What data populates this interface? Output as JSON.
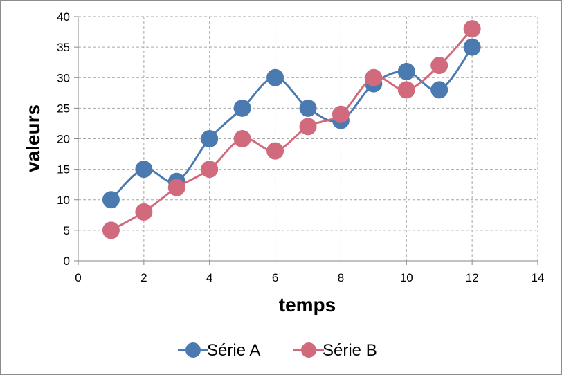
{
  "chart_data": {
    "type": "scatter",
    "title": "",
    "xlabel": "temps",
    "ylabel": "valeurs",
    "xlim": [
      0,
      14
    ],
    "ylim": [
      0,
      40
    ],
    "x_ticks": [
      0,
      2,
      4,
      6,
      8,
      10,
      12,
      14
    ],
    "y_ticks": [
      0,
      5,
      10,
      15,
      20,
      25,
      30,
      35,
      40
    ],
    "grid": true,
    "legend_position": "bottom",
    "series": [
      {
        "name": "Série A",
        "color": "#4a7ab0",
        "x": [
          1,
          2,
          3,
          4,
          5,
          6,
          7,
          8,
          9,
          10,
          11,
          12
        ],
        "y": [
          10,
          15,
          13,
          20,
          25,
          30,
          25,
          23,
          29,
          31,
          28,
          35
        ]
      },
      {
        "name": "Série B",
        "color": "#d06a7c",
        "x": [
          1,
          2,
          3,
          4,
          5,
          6,
          7,
          8,
          9,
          10,
          11,
          12
        ],
        "y": [
          5,
          8,
          12,
          15,
          20,
          18,
          22,
          24,
          30,
          28,
          32,
          38
        ]
      }
    ]
  }
}
